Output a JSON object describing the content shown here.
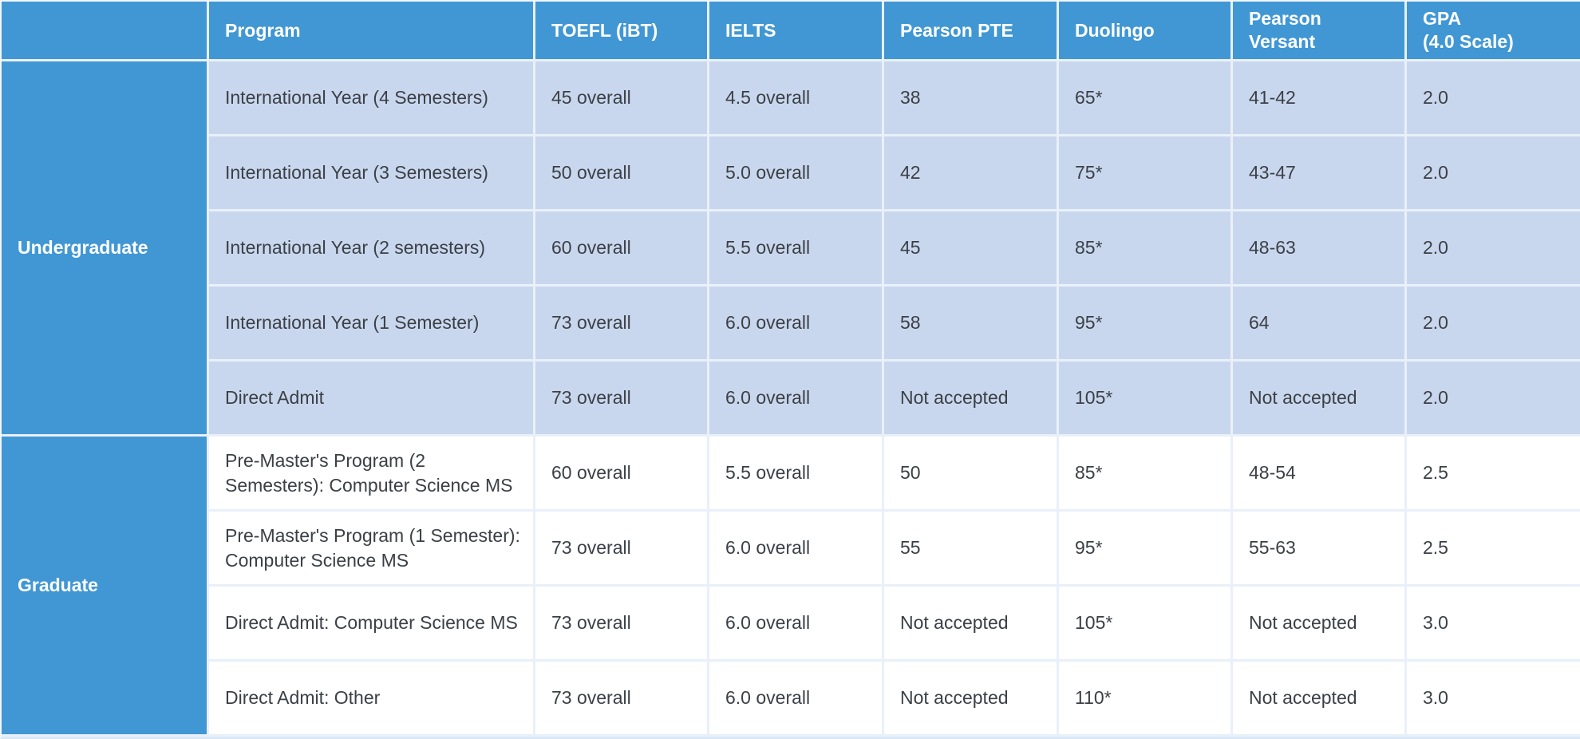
{
  "theme": {
    "header_blue": "#4197D4",
    "row_light_blue": "#C9D7EE",
    "row_white": "#FFFFFF",
    "grid_line": "#E9F0F9",
    "body_text": "#3B4046",
    "header_text": "#FFFFFF"
  },
  "columns": [
    "",
    "Program",
    "TOEFL (iBT)",
    "IELTS",
    "Pearson PTE",
    "Duolingo",
    "Pearson\nVersant",
    "GPA\n(4.0 Scale)"
  ],
  "sections": [
    {
      "category": "Undergraduate",
      "row_style": "light",
      "rows": [
        {
          "program": "International Year (4 Semesters)",
          "toefl": "45 overall",
          "ielts": "4.5 overall",
          "pte": "38",
          "duolingo": "65*",
          "versant": "41-42",
          "gpa": "2.0"
        },
        {
          "program": "International Year (3 Semesters)",
          "toefl": "50 overall",
          "ielts": "5.0 overall",
          "pte": "42",
          "duolingo": "75*",
          "versant": "43-47",
          "gpa": "2.0"
        },
        {
          "program": "International Year (2 semesters)",
          "toefl": "60 overall",
          "ielts": "5.5 overall",
          "pte": "45",
          "duolingo": "85*",
          "versant": "48-63",
          "gpa": "2.0"
        },
        {
          "program": "International Year (1 Semester)",
          "toefl": "73 overall",
          "ielts": "6.0 overall",
          "pte": "58",
          "duolingo": "95*",
          "versant": "64",
          "gpa": "2.0"
        },
        {
          "program": "Direct Admit",
          "toefl": "73 overall",
          "ielts": "6.0 overall",
          "pte": "Not accepted",
          "duolingo": "105*",
          "versant": "Not accepted",
          "gpa": "2.0"
        }
      ]
    },
    {
      "category": "Graduate",
      "row_style": "white",
      "rows": [
        {
          "program": "Pre-Master's Program (2 Semesters): Computer Science MS",
          "toefl": "60 overall",
          "ielts": "5.5 overall",
          "pte": "50",
          "duolingo": "85*",
          "versant": "48-54",
          "gpa": "2.5"
        },
        {
          "program": "Pre-Master's Program (1 Semester): Computer Science MS",
          "toefl": "73 overall",
          "ielts": "6.0 overall",
          "pte": "55",
          "duolingo": "95*",
          "versant": "55-63",
          "gpa": "2.5"
        },
        {
          "program": "Direct Admit: Computer Science MS",
          "toefl": "73 overall",
          "ielts": "6.0 overall",
          "pte": "Not accepted",
          "duolingo": "105*",
          "versant": "Not accepted",
          "gpa": "3.0"
        },
        {
          "program": "Direct Admit: Other",
          "toefl": "73 overall",
          "ielts": "6.0 overall",
          "pte": "Not accepted",
          "duolingo": "110*",
          "versant": "Not accepted",
          "gpa": "3.0"
        }
      ]
    }
  ]
}
